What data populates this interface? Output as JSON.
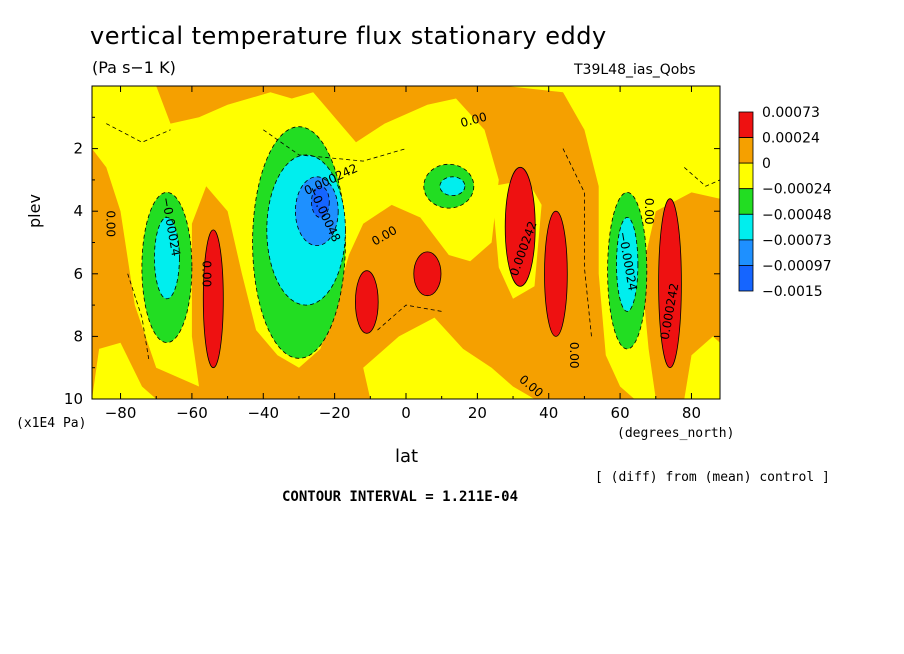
{
  "header": {
    "title": "vertical temperature flux stationary eddy",
    "units": "(Pa s−1 K)",
    "dataset": "T39L48_ias_Qobs"
  },
  "footer": {
    "x_unit": "(degrees_north)",
    "y_unit": "(x1E4 Pa)",
    "diff_note": "[ (diff) from (mean) control ]",
    "contour_interval": "CONTOUR INTERVAL = 1.211E-04"
  },
  "chart_data": {
    "type": "heatmap",
    "title": "vertical temperature flux stationary eddy",
    "subtitle": "(Pa s−1 K)",
    "xlabel": "lat",
    "ylabel": "plev",
    "xlim": [
      -88,
      88
    ],
    "ylim": [
      10,
      0
    ],
    "x_ticks": [
      -80,
      -60,
      -40,
      -20,
      0,
      20,
      40,
      60,
      80
    ],
    "y_ticks": [
      2,
      4,
      6,
      8,
      10
    ],
    "colorbar": {
      "levels": [
        "0.00073",
        "0.00024",
        "0",
        "−0.00024",
        "−0.00048",
        "−0.00073",
        "−0.00097",
        "−0.0015"
      ],
      "colors": [
        "#ee1111",
        "#f5a000",
        "#ffff00",
        "#22dd22",
        "#00eeee",
        "#1e90ff",
        "#1565ff"
      ]
    },
    "regions": [
      {
        "kind": "neg1",
        "lat": -67,
        "plev": 5.8,
        "dlat": 7,
        "dplev": 2.4
      },
      {
        "kind": "neg2",
        "lat": -67,
        "plev": 5.5,
        "dlat": 3.5,
        "dplev": 1.3
      },
      {
        "kind": "pos2",
        "lat": -54,
        "plev": 6.8,
        "dlat": 2.8,
        "dplev": 2.2
      },
      {
        "kind": "neg1",
        "lat": -30,
        "plev": 5.0,
        "dlat": 13,
        "dplev": 3.7
      },
      {
        "kind": "neg2",
        "lat": -28,
        "plev": 4.6,
        "dlat": 11,
        "dplev": 2.4
      },
      {
        "kind": "neg3",
        "lat": -25,
        "plev": 4.0,
        "dlat": 6,
        "dplev": 1.1
      },
      {
        "kind": "neg4",
        "lat": -24,
        "plev": 3.7,
        "dlat": 2.5,
        "dplev": 0.5
      },
      {
        "kind": "pos2",
        "lat": -11,
        "plev": 6.9,
        "dlat": 3.2,
        "dplev": 1.0
      },
      {
        "kind": "pos2",
        "lat": 6,
        "plev": 6.0,
        "dlat": 3.8,
        "dplev": 0.7
      },
      {
        "kind": "neg1",
        "lat": 12,
        "plev": 3.2,
        "dlat": 7,
        "dplev": 0.7
      },
      {
        "kind": "neg2",
        "lat": 13,
        "plev": 3.2,
        "dlat": 3.5,
        "dplev": 0.3
      },
      {
        "kind": "pos2",
        "lat": 32,
        "plev": 4.5,
        "dlat": 4.2,
        "dplev": 1.9
      },
      {
        "kind": "pos2",
        "lat": 42,
        "plev": 6.0,
        "dlat": 3.2,
        "dplev": 2.0
      },
      {
        "kind": "neg1",
        "lat": 62,
        "plev": 5.9,
        "dlat": 5.5,
        "dplev": 2.5
      },
      {
        "kind": "neg2",
        "lat": 62,
        "plev": 5.7,
        "dlat": 3,
        "dplev": 1.5
      },
      {
        "kind": "pos2",
        "lat": 74,
        "plev": 6.3,
        "dlat": 3.2,
        "dplev": 2.7
      }
    ],
    "contour_labels": [
      {
        "text": "0.00",
        "lat": 19,
        "plev": 1.1,
        "angle": -15
      },
      {
        "text": "0.000242",
        "lat": -21,
        "plev": 3.0,
        "angle": -25
      },
      {
        "text": "−0.00048",
        "lat": -23,
        "plev": 4.1,
        "angle": 65
      },
      {
        "text": "0.00",
        "lat": -6,
        "plev": 4.8,
        "angle": -30
      },
      {
        "text": "−0.00024",
        "lat": -66,
        "plev": 4.5,
        "angle": 80
      },
      {
        "text": "0.00",
        "lat": -56,
        "plev": 6.0,
        "angle": 90
      },
      {
        "text": "0.00",
        "lat": -83,
        "plev": 4.4,
        "angle": 90
      },
      {
        "text": "0.000242",
        "lat": 33,
        "plev": 5.2,
        "angle": -70
      },
      {
        "text": "0.00",
        "lat": 47,
        "plev": 8.6,
        "angle": 90
      },
      {
        "text": "0.00",
        "lat": 35,
        "plev": 9.6,
        "angle": 40
      },
      {
        "text": "−0.00024",
        "lat": 62,
        "plev": 5.6,
        "angle": 80
      },
      {
        "text": "0.00",
        "lat": 68,
        "plev": 4.0,
        "angle": 90
      },
      {
        "text": "0.000242",
        "lat": 74,
        "plev": 7.2,
        "angle": -80
      }
    ]
  }
}
